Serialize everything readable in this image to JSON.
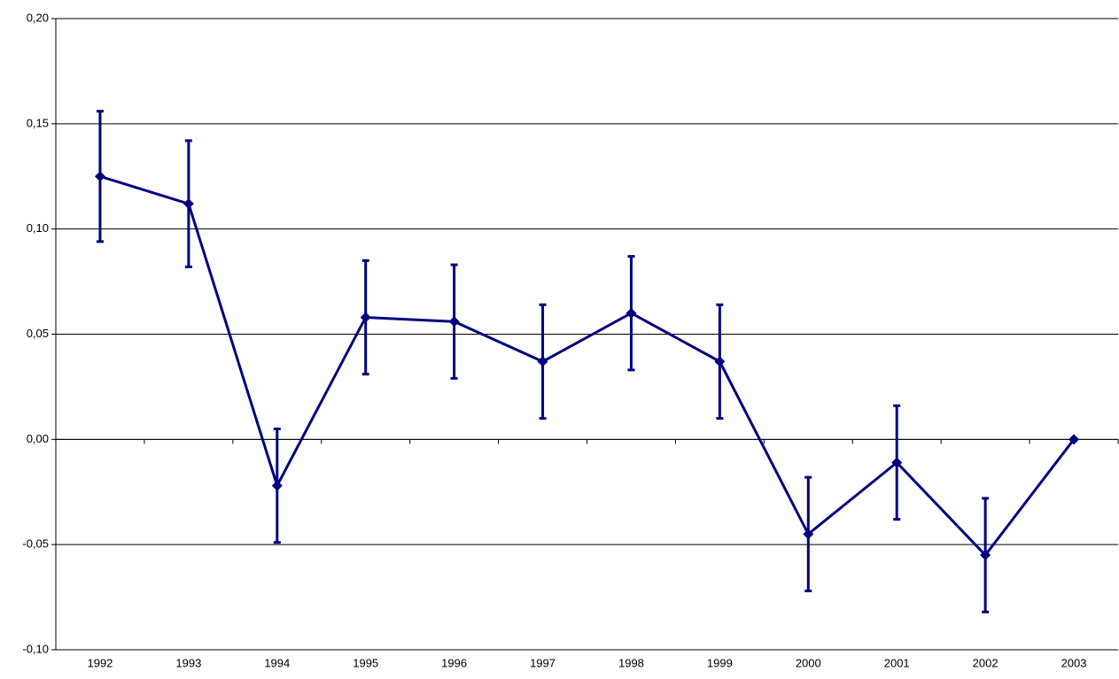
{
  "chart_data": {
    "type": "line",
    "categories": [
      "1992",
      "1993",
      "1994",
      "1995",
      "1996",
      "1997",
      "1998",
      "1999",
      "2000",
      "2001",
      "2002",
      "2003"
    ],
    "values": [
      0.125,
      0.112,
      -0.022,
      0.058,
      0.056,
      0.037,
      0.06,
      0.037,
      -0.045,
      -0.011,
      -0.055,
      0.0
    ],
    "errors": [
      0.031,
      0.03,
      0.027,
      0.027,
      0.027,
      0.027,
      0.027,
      0.027,
      0.027,
      0.027,
      0.027,
      0
    ],
    "color": "#000080",
    "ylim": [
      -0.1,
      0.2
    ],
    "yticks": [
      {
        "value": -0.1,
        "label": "-0,10"
      },
      {
        "value": -0.05,
        "label": "-0,05"
      },
      {
        "value": 0,
        "label": "0,00"
      },
      {
        "value": 0.05,
        "label": "0,05"
      },
      {
        "value": 0.1,
        "label": "0,10"
      },
      {
        "value": 0.15,
        "label": "0,15"
      },
      {
        "value": 0.2,
        "label": "0,20"
      }
    ],
    "grid": true
  }
}
